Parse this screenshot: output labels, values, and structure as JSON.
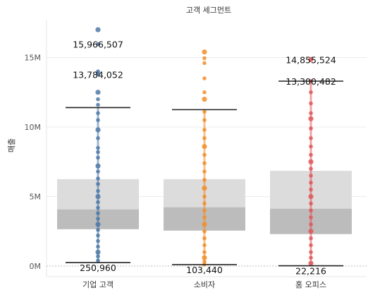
{
  "chart_data": {
    "type": "box",
    "title": "고객 세그먼트",
    "xlabel": "",
    "ylabel": "매출",
    "ylim": [
      0,
      17500000
    ],
    "yticks": [
      {
        "value": 0,
        "label": "0M"
      },
      {
        "value": 5000000,
        "label": "5M"
      },
      {
        "value": 10000000,
        "label": "10M"
      },
      {
        "value": 15000000,
        "label": "15M"
      }
    ],
    "grid": true,
    "categories": [
      "기업 고객",
      "소비자",
      "홈 오피스"
    ],
    "series": [
      {
        "category": "기업 고객",
        "color": "#4e79a7",
        "whisker_low": 250960,
        "q1": 2650000,
        "median": 4050000,
        "q3": 6250000,
        "whisker_high": 11400000,
        "points": [
          17000000,
          15966507,
          14000000,
          13900000,
          13784052,
          12500000,
          12000000,
          11600000,
          11000000,
          10500000,
          9800000,
          9200000,
          8500000,
          8200000,
          7800000,
          7200000,
          6800000,
          6300000,
          5900000,
          5400000,
          5000000,
          4600000,
          4200000,
          3800000,
          3400000,
          3000000,
          2600000,
          2200000,
          1800000,
          1400000,
          1000000,
          700000,
          400000
        ],
        "annotations": [
          {
            "value": 15966507,
            "label": "15,966,507"
          },
          {
            "value": 13784052,
            "label": "13,784,052"
          },
          {
            "value": 250960,
            "label": "250,960"
          }
        ]
      },
      {
        "category": "소비자",
        "color": "#f28e2b",
        "whisker_low": 103440,
        "q1": 2550000,
        "median": 4200000,
        "q3": 6250000,
        "whisker_high": 11250000,
        "points": [
          15400000,
          14950000,
          14600000,
          13500000,
          12500000,
          12000000,
          11100000,
          10500000,
          9800000,
          9200000,
          8600000,
          8000000,
          7400000,
          6800000,
          6200000,
          5600000,
          5000000,
          4500000,
          4000000,
          3500000,
          3000000,
          2500000,
          2000000,
          1500000,
          1000000,
          600000,
          300000,
          103440
        ],
        "annotations": [
          {
            "value": 103440,
            "label": "103,440"
          }
        ]
      },
      {
        "category": "홈 오피스",
        "color": "#e15759",
        "whisker_low": 22216,
        "q1": 2300000,
        "median": 4100000,
        "q3": 6850000,
        "whisker_high": 13300000,
        "points": [
          14855524,
          13300482,
          12500000,
          11700000,
          11000000,
          10600000,
          9900000,
          9200000,
          8600000,
          8000000,
          7500000,
          7000000,
          6500000,
          6000000,
          5500000,
          5000000,
          4500000,
          4000000,
          3500000,
          3000000,
          2500000,
          2000000,
          1500000,
          1000000,
          600000,
          200000
        ],
        "annotations": [
          {
            "value": 14855524,
            "label": "14,855,524"
          },
          {
            "value": 13300482,
            "label": "13,300,482"
          },
          {
            "value": 22216,
            "label": "22,216"
          }
        ]
      }
    ]
  }
}
